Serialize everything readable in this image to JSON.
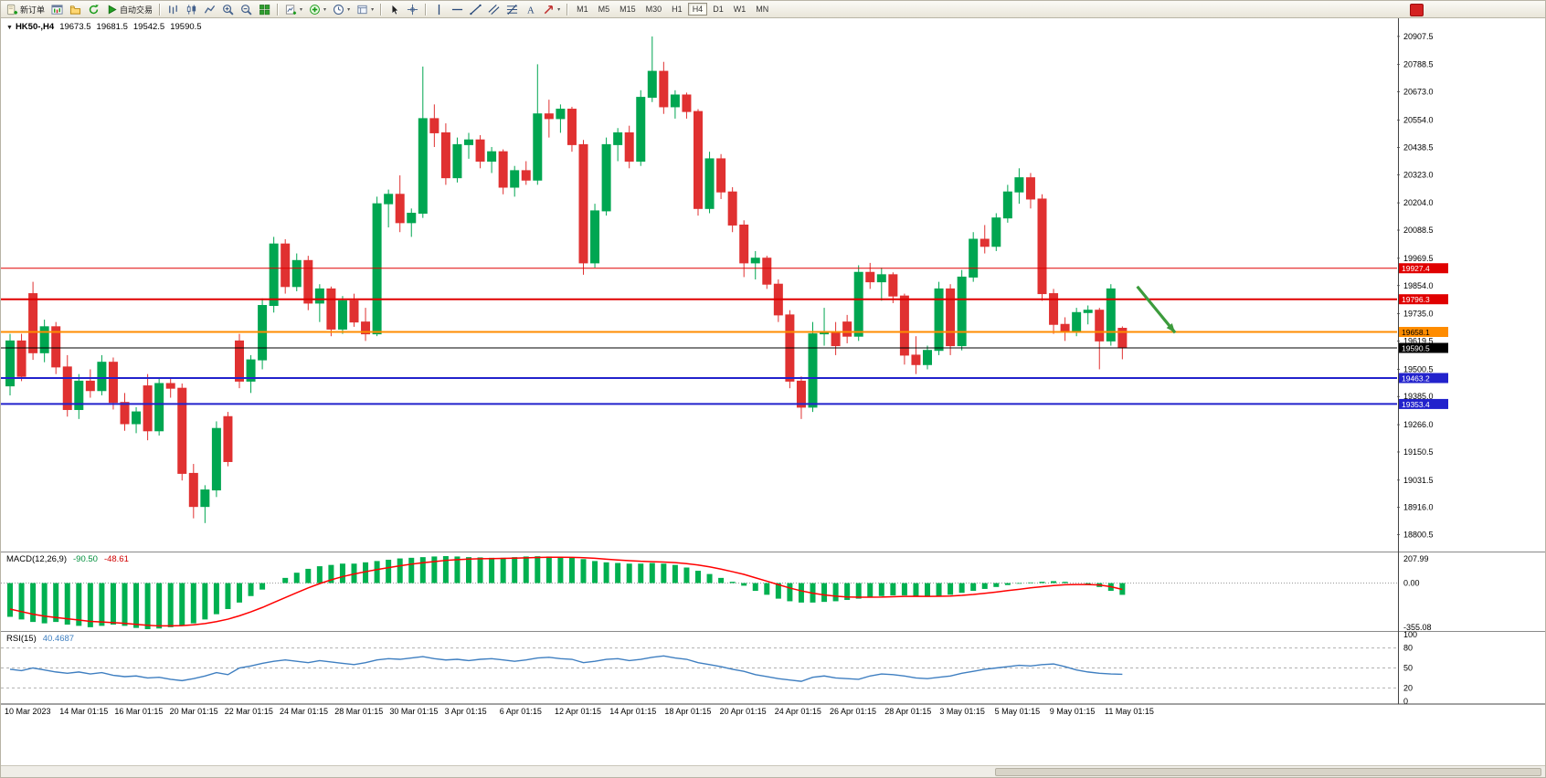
{
  "toolbar": {
    "groups": [
      {
        "items": [
          {
            "name": "new-order-button",
            "icon": "new-order",
            "label": "新订单"
          },
          {
            "name": "chart-window-button",
            "icon": "chart-window"
          },
          {
            "name": "profiles-button",
            "icon": "profiles"
          },
          {
            "name": "refresh-button",
            "icon": "refresh"
          },
          {
            "name": "auto-trading-button",
            "icon": "autotrade",
            "label": "自动交易"
          }
        ]
      },
      {
        "items": [
          {
            "name": "bar-chart-button",
            "icon": "bar-chart"
          },
          {
            "name": "candlestick-chart-button",
            "icon": "candlestick"
          },
          {
            "name": "line-chart-button",
            "icon": "line-chart"
          },
          {
            "name": "zoom-in-button",
            "icon": "zoom-in"
          },
          {
            "name": "zoom-out-button",
            "icon": "zoom-out"
          },
          {
            "name": "tile-windows-button",
            "icon": "tile-windows"
          }
        ]
      },
      {
        "items": [
          {
            "name": "new-chart-button",
            "icon": "new-chart",
            "dropdown": true
          },
          {
            "name": "indicators-button",
            "icon": "indicators",
            "dropdown": true
          },
          {
            "name": "periods-button",
            "icon": "clock",
            "dropdown": true
          },
          {
            "name": "templates-button",
            "icon": "templates",
            "dropdown": true
          }
        ]
      },
      {
        "items": [
          {
            "name": "cursor-button",
            "icon": "cursor"
          },
          {
            "name": "crosshair-button",
            "icon": "crosshair"
          }
        ]
      },
      {
        "items": [
          {
            "name": "vertical-line-button",
            "icon": "vline"
          },
          {
            "name": "horizontal-line-button",
            "icon": "hline"
          },
          {
            "name": "trendline-button",
            "icon": "trendline"
          },
          {
            "name": "equidistant-channel-button",
            "icon": "channel"
          },
          {
            "name": "fibonacci-button",
            "icon": "fibonacci"
          },
          {
            "name": "text-label-button",
            "icon": "text"
          },
          {
            "name": "arrows-button",
            "icon": "arrows",
            "dropdown": true
          }
        ]
      }
    ],
    "timeframes": [
      "M1",
      "M5",
      "M15",
      "M30",
      "H1",
      "H4",
      "D1",
      "W1",
      "MN"
    ],
    "active_timeframe": "H4"
  },
  "chart_header": {
    "symbol_period": "HK50-,H4",
    "open": "19673.5",
    "high": "19681.5",
    "low": "19542.5",
    "close": "19590.5"
  },
  "indicators": {
    "macd": {
      "label": "MACD(12,26,9)",
      "value_main": "-90.50",
      "value_signal": "-48.61",
      "axis_labels": [
        "207.99",
        "0.00",
        "-355.08"
      ]
    },
    "rsi": {
      "label": "RSI(15)",
      "value": "40.4687",
      "axis_labels": [
        "100",
        "80",
        "50",
        "20",
        "0"
      ],
      "levels": [
        80,
        50,
        20
      ]
    }
  },
  "chart_data": {
    "type": "candlestick",
    "symbol": "HK50-",
    "period": "H4",
    "ylim": [
      18745,
      20965
    ],
    "y_axis_labels": [
      "20907.5",
      "20788.5",
      "20673.0",
      "20554.0",
      "20438.5",
      "20323.0",
      "20204.0",
      "20088.5",
      "19969.5",
      "19854.0",
      "19735.0",
      "19619.5",
      "19500.5",
      "19385.0",
      "19266.0",
      "19150.5",
      "19031.5",
      "18916.0",
      "18800.5"
    ],
    "x_axis_labels": [
      "10 Mar 2023",
      "14 Mar 01:15",
      "16 Mar 01:15",
      "20 Mar 01:15",
      "22 Mar 01:15",
      "24 Mar 01:15",
      "28 Mar 01:15",
      "30 Mar 01:15",
      "3 Apr 01:15",
      "6 Apr 01:15",
      "12 Apr 01:15",
      "14 Apr 01:15",
      "18 Apr 01:15",
      "20 Apr 01:15",
      "24 Apr 01:15",
      "26 Apr 01:15",
      "28 Apr 01:15",
      "3 May 01:15",
      "5 May 01:15",
      "9 May 01:15",
      "11 May 01:15"
    ],
    "colors": {
      "up": "#00a651",
      "down": "#e03131",
      "macd_hist": "#00b050",
      "macd_signal": "#ff0000",
      "rsi_line": "#3f7fc1",
      "axis_text": "#000000"
    },
    "candles": [
      [
        19430,
        19650,
        19390,
        19620
      ],
      [
        19620,
        19650,
        19450,
        19470
      ],
      [
        19820,
        19870,
        19540,
        19570
      ],
      [
        19570,
        19710,
        19530,
        19680
      ],
      [
        19680,
        19700,
        19480,
        19510
      ],
      [
        19510,
        19560,
        19300,
        19330
      ],
      [
        19330,
        19480,
        19290,
        19450
      ],
      [
        19450,
        19500,
        19380,
        19410
      ],
      [
        19410,
        19560,
        19390,
        19530
      ],
      [
        19530,
        19550,
        19330,
        19360
      ],
      [
        19360,
        19400,
        19240,
        19270
      ],
      [
        19270,
        19340,
        19230,
        19320
      ],
      [
        19430,
        19480,
        19200,
        19240
      ],
      [
        19240,
        19460,
        19220,
        19440
      ],
      [
        19440,
        19460,
        19380,
        19420
      ],
      [
        19420,
        19440,
        19030,
        19060
      ],
      [
        19060,
        19100,
        18870,
        18920
      ],
      [
        18920,
        19010,
        18850,
        18990
      ],
      [
        18990,
        19280,
        18960,
        19250
      ],
      [
        19300,
        19320,
        19090,
        19110
      ],
      [
        19620,
        19650,
        19420,
        19450
      ],
      [
        19450,
        19560,
        19400,
        19540
      ],
      [
        19540,
        19800,
        19500,
        19770
      ],
      [
        19770,
        20060,
        19740,
        20030
      ],
      [
        20030,
        20050,
        19820,
        19850
      ],
      [
        19850,
        19990,
        19830,
        19960
      ],
      [
        19960,
        19980,
        19750,
        19780
      ],
      [
        19780,
        19860,
        19700,
        19840
      ],
      [
        19840,
        19850,
        19640,
        19670
      ],
      [
        19670,
        19810,
        19650,
        19790
      ],
      [
        19790,
        19820,
        19680,
        19700
      ],
      [
        19700,
        19760,
        19620,
        19650
      ],
      [
        19650,
        20230,
        19640,
        20200
      ],
      [
        20200,
        20260,
        20100,
        20240
      ],
      [
        20240,
        20320,
        20080,
        20120
      ],
      [
        20120,
        20180,
        20060,
        20160
      ],
      [
        20160,
        20780,
        20140,
        20560
      ],
      [
        20560,
        20620,
        20440,
        20500
      ],
      [
        20500,
        20540,
        20280,
        20310
      ],
      [
        20310,
        20480,
        20290,
        20450
      ],
      [
        20450,
        20500,
        20390,
        20470
      ],
      [
        20470,
        20490,
        20350,
        20380
      ],
      [
        20380,
        20440,
        20330,
        20420
      ],
      [
        20420,
        20430,
        20240,
        20270
      ],
      [
        20270,
        20360,
        20230,
        20340
      ],
      [
        20340,
        20380,
        20280,
        20300
      ],
      [
        20300,
        20790,
        20280,
        20580
      ],
      [
        20580,
        20640,
        20480,
        20560
      ],
      [
        20560,
        20620,
        20500,
        20600
      ],
      [
        20600,
        20610,
        20420,
        20450
      ],
      [
        20450,
        20470,
        19900,
        19950
      ],
      [
        19950,
        20200,
        19930,
        20170
      ],
      [
        20170,
        20480,
        20150,
        20450
      ],
      [
        20450,
        20520,
        20380,
        20500
      ],
      [
        20500,
        20530,
        20350,
        20380
      ],
      [
        20380,
        20680,
        20360,
        20650
      ],
      [
        20650,
        20907.5,
        20630,
        20760
      ],
      [
        20760,
        20800,
        20580,
        20610
      ],
      [
        20610,
        20680,
        20560,
        20660
      ],
      [
        20660,
        20670,
        20560,
        20590
      ],
      [
        20590,
        20600,
        20150,
        20180
      ],
      [
        20180,
        20420,
        20160,
        20390
      ],
      [
        20390,
        20410,
        20220,
        20250
      ],
      [
        20250,
        20270,
        20080,
        20110
      ],
      [
        20110,
        20130,
        19890,
        19950
      ],
      [
        19950,
        20000,
        19880,
        19970
      ],
      [
        19970,
        19980,
        19840,
        19860
      ],
      [
        19860,
        19880,
        19700,
        19730
      ],
      [
        19730,
        19750,
        19420,
        19450
      ],
      [
        19450,
        19470,
        19290,
        19340
      ],
      [
        19340,
        19700,
        19320,
        19650
      ],
      [
        19650,
        19760,
        19600,
        19660
      ],
      [
        19660,
        19700,
        19560,
        19600
      ],
      [
        19700,
        19730,
        19610,
        19640
      ],
      [
        19640,
        19940,
        19620,
        19910
      ],
      [
        19910,
        19950,
        19840,
        19870
      ],
      [
        19870,
        19930,
        19790,
        19900
      ],
      [
        19900,
        19910,
        19780,
        19810
      ],
      [
        19810,
        19820,
        19520,
        19560
      ],
      [
        19560,
        19640,
        19480,
        19520
      ],
      [
        19520,
        19600,
        19500,
        19580
      ],
      [
        19580,
        19870,
        19560,
        19840
      ],
      [
        19840,
        19860,
        19560,
        19600
      ],
      [
        19600,
        19920,
        19580,
        19890
      ],
      [
        19890,
        20080,
        19870,
        20050
      ],
      [
        20050,
        20110,
        19990,
        20020
      ],
      [
        20020,
        20160,
        20000,
        20140
      ],
      [
        20140,
        20280,
        20120,
        20250
      ],
      [
        20250,
        20350,
        20200,
        20310
      ],
      [
        20310,
        20330,
        20180,
        20220
      ],
      [
        20220,
        20240,
        19790,
        19820
      ],
      [
        19820,
        19840,
        19650,
        19690
      ],
      [
        19690,
        19720,
        19620,
        19660
      ],
      [
        19660,
        19760,
        19640,
        19740
      ],
      [
        19740,
        19770,
        19690,
        19750
      ],
      [
        19750,
        19760,
        19500,
        19620
      ],
      [
        19620,
        19860,
        19600,
        19840
      ],
      [
        19673.5,
        19681.5,
        19542.5,
        19590.5
      ]
    ],
    "hlines": [
      {
        "price": 19927.4,
        "color": "#e00000",
        "width": 1,
        "tag": "19927.4",
        "label_color": "#ffffff"
      },
      {
        "price": 19796.3,
        "color": "#e00000",
        "width": 2,
        "tag": "19796.3",
        "label_color": "#ffffff"
      },
      {
        "price": 19658.1,
        "color": "#ff8c00",
        "width": 2,
        "tag": "19658.1",
        "label_color": "#000000"
      },
      {
        "price": 19590.5,
        "color": "#000000",
        "width": 1,
        "tag": "19590.5",
        "label_color": "#ffffff"
      },
      {
        "price": 19463.2,
        "color": "#2222cc",
        "width": 2,
        "tag": "19463.2",
        "label_color": "#ffffff"
      },
      {
        "price": 19353.4,
        "color": "#2222cc",
        "width": 2,
        "tag": "19353.4",
        "label_color": "#ffffff"
      }
    ],
    "arrow": {
      "bar_from": 98.3,
      "price_from": 19850,
      "bar_to": 101.6,
      "price_to": 19655,
      "color": "#3c9b3c"
    },
    "macd": {
      "ylim": [
        -355.08,
        207.99
      ],
      "histogram": [
        -260,
        -280,
        -300,
        -310,
        -300,
        -320,
        -330,
        -340,
        -330,
        -320,
        -330,
        -345,
        -355,
        -350,
        -340,
        -330,
        -310,
        -280,
        -240,
        -200,
        -150,
        -100,
        -50,
        0,
        40,
        80,
        110,
        130,
        140,
        150,
        150,
        160,
        170,
        180,
        190,
        195,
        200,
        205,
        207.99,
        205,
        200,
        198,
        195,
        195,
        200,
        205,
        207,
        205,
        200,
        195,
        185,
        170,
        160,
        155,
        150,
        150,
        155,
        150,
        140,
        120,
        95,
        70,
        40,
        10,
        -20,
        -60,
        -90,
        -120,
        -140,
        -150,
        -150,
        -145,
        -140,
        -130,
        -120,
        -110,
        -100,
        -95,
        -95,
        -100,
        -105,
        -100,
        -90,
        -75,
        -60,
        -45,
        -30,
        -15,
        -5,
        5,
        10,
        15,
        10,
        0,
        -10,
        -30,
        -60,
        -90.5
      ],
      "signal": [
        -200,
        -220,
        -240,
        -255,
        -265,
        -275,
        -285,
        -295,
        -300,
        -305,
        -310,
        -318,
        -325,
        -330,
        -330,
        -328,
        -322,
        -312,
        -297,
        -278,
        -252,
        -222,
        -188,
        -150,
        -112,
        -74,
        -37,
        -4,
        25,
        50,
        70,
        88,
        104,
        119,
        133,
        146,
        157,
        166,
        175,
        181,
        185,
        188,
        189,
        190,
        192,
        195,
        197,
        199,
        199,
        198,
        196,
        191,
        184,
        178,
        173,
        168,
        165,
        162,
        158,
        150,
        139,
        125,
        108,
        88,
        67,
        41,
        15,
        -12,
        -38,
        -60,
        -78,
        -91,
        -101,
        -107,
        -109,
        -109,
        -108,
        -105,
        -103,
        -102,
        -103,
        -102,
        -100,
        -95,
        -88,
        -79,
        -69,
        -58,
        -48,
        -37,
        -28,
        -19,
        -13,
        -11,
        -11,
        -15,
        -28,
        -48.61
      ]
    },
    "rsi": {
      "ylim": [
        0,
        100
      ],
      "values": [
        48,
        46,
        50,
        47,
        44,
        42,
        44,
        41,
        43,
        39,
        37,
        38,
        35,
        36,
        33,
        31,
        34,
        38,
        43,
        40,
        50,
        53,
        57,
        60,
        62,
        60,
        58,
        61,
        59,
        57,
        55,
        58,
        62,
        64,
        63,
        65,
        67,
        64,
        62,
        63,
        61,
        63,
        64,
        62,
        60,
        62,
        65,
        66,
        64,
        63,
        58,
        60,
        63,
        64,
        61,
        63,
        66,
        68,
        65,
        63,
        58,
        55,
        52,
        48,
        45,
        40,
        37,
        34,
        32,
        30,
        36,
        38,
        35,
        34,
        33,
        38,
        41,
        40,
        38,
        35,
        34,
        36,
        38,
        42,
        45,
        48,
        50,
        52,
        54,
        53,
        55,
        56,
        52,
        47,
        44,
        42,
        41,
        40.47
      ]
    }
  }
}
